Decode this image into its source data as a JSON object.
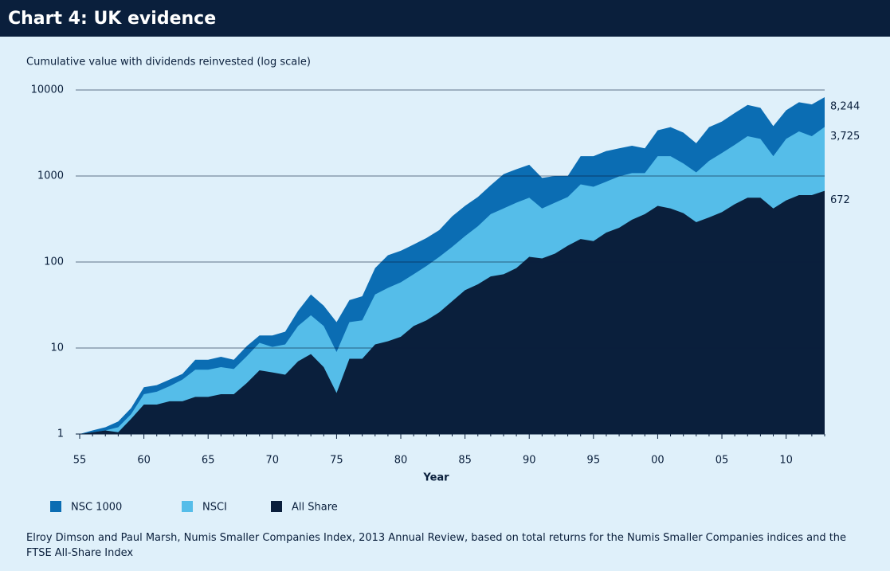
{
  "chart_data": {
    "type": "area",
    "title": "Chart 4: UK evidence",
    "subtitle": "Cumulative value with dividends reinvested (log scale)",
    "x_label": "Year",
    "source": "Elroy Dimson and Paul Marsh, Numis Smaller Companies Index, 2013 Annual Review, based on total returns for the Numis Smaller Companies indices and the FTSE All-Share Index",
    "log_y": true,
    "grid": true,
    "legend": "bottom",
    "x": [
      1955,
      1956,
      1957,
      1958,
      1959,
      1960,
      1961,
      1962,
      1963,
      1964,
      1965,
      1966,
      1967,
      1968,
      1969,
      1970,
      1971,
      1972,
      1973,
      1974,
      1975,
      1976,
      1977,
      1978,
      1979,
      1980,
      1981,
      1982,
      1983,
      1984,
      1985,
      1986,
      1987,
      1988,
      1989,
      1990,
      1991,
      1992,
      1993,
      1994,
      1995,
      1996,
      1997,
      1998,
      1999,
      2000,
      2001,
      2002,
      2003,
      2004,
      2005,
      2006,
      2007,
      2008,
      2009,
      2010,
      2011,
      2012,
      2013
    ],
    "xlim": [
      1955,
      2013
    ],
    "xticks": [
      {
        "value": 1955,
        "label": "55"
      },
      {
        "value": 1960,
        "label": "60"
      },
      {
        "value": 1965,
        "label": "65"
      },
      {
        "value": 1970,
        "label": "70"
      },
      {
        "value": 1975,
        "label": "75"
      },
      {
        "value": 1980,
        "label": "80"
      },
      {
        "value": 1985,
        "label": "85"
      },
      {
        "value": 1990,
        "label": "90"
      },
      {
        "value": 1995,
        "label": "95"
      },
      {
        "value": 2000,
        "label": "00"
      },
      {
        "value": 2005,
        "label": "05"
      },
      {
        "value": 2010,
        "label": "10"
      }
    ],
    "ylim": [
      1,
      10000
    ],
    "yticks": [
      1,
      10,
      100,
      1000,
      10000
    ],
    "series": [
      {
        "name": "NSC 1000",
        "color": "#0b6db3",
        "end_label": "8,244",
        "values": [
          1,
          1.1,
          1.2,
          1.4,
          2,
          3.5,
          3.7,
          4.3,
          5,
          7.3,
          7.3,
          7.9,
          7.3,
          10.5,
          14,
          14,
          15.5,
          27,
          42,
          31,
          20,
          36,
          40,
          85,
          120,
          135,
          160,
          190,
          235,
          340,
          450,
          570,
          780,
          1050,
          1200,
          1350,
          950,
          1000,
          1000,
          1700,
          1700,
          1950,
          2100,
          2250,
          2100,
          3400,
          3700,
          3200,
          2400,
          3700,
          4300,
          5400,
          6700,
          6200,
          3800,
          5800,
          7200,
          6800,
          8244
        ]
      },
      {
        "name": "NSCI",
        "color": "#55bde9",
        "end_label": "3,725",
        "values": [
          1,
          1.05,
          1.1,
          1.2,
          1.7,
          2.9,
          3.1,
          3.6,
          4.3,
          5.6,
          5.6,
          6,
          5.7,
          8,
          11.5,
          10.3,
          11,
          18,
          24,
          18,
          9,
          20,
          21,
          42,
          50,
          58,
          72,
          90,
          115,
          150,
          200,
          260,
          360,
          420,
          490,
          560,
          420,
          490,
          570,
          800,
          750,
          860,
          990,
          1080,
          1080,
          1700,
          1700,
          1400,
          1100,
          1500,
          1850,
          2300,
          2900,
          2700,
          1700,
          2700,
          3300,
          2900,
          3725
        ]
      },
      {
        "name": "All Share",
        "color": "#0a1f3c",
        "end_label": "672",
        "values": [
          1,
          1.05,
          1.1,
          1.05,
          1.5,
          2.2,
          2.2,
          2.4,
          2.4,
          2.7,
          2.7,
          2.9,
          2.9,
          3.9,
          5.5,
          5.2,
          4.9,
          7,
          8.5,
          6,
          3,
          7.5,
          7.5,
          11,
          12,
          13.5,
          18,
          21,
          26,
          35,
          47,
          55,
          68,
          72,
          85,
          115,
          110,
          125,
          155,
          185,
          175,
          220,
          250,
          310,
          360,
          450,
          420,
          370,
          290,
          330,
          380,
          470,
          560,
          560,
          420,
          520,
          600,
          600,
          672
        ]
      }
    ]
  }
}
